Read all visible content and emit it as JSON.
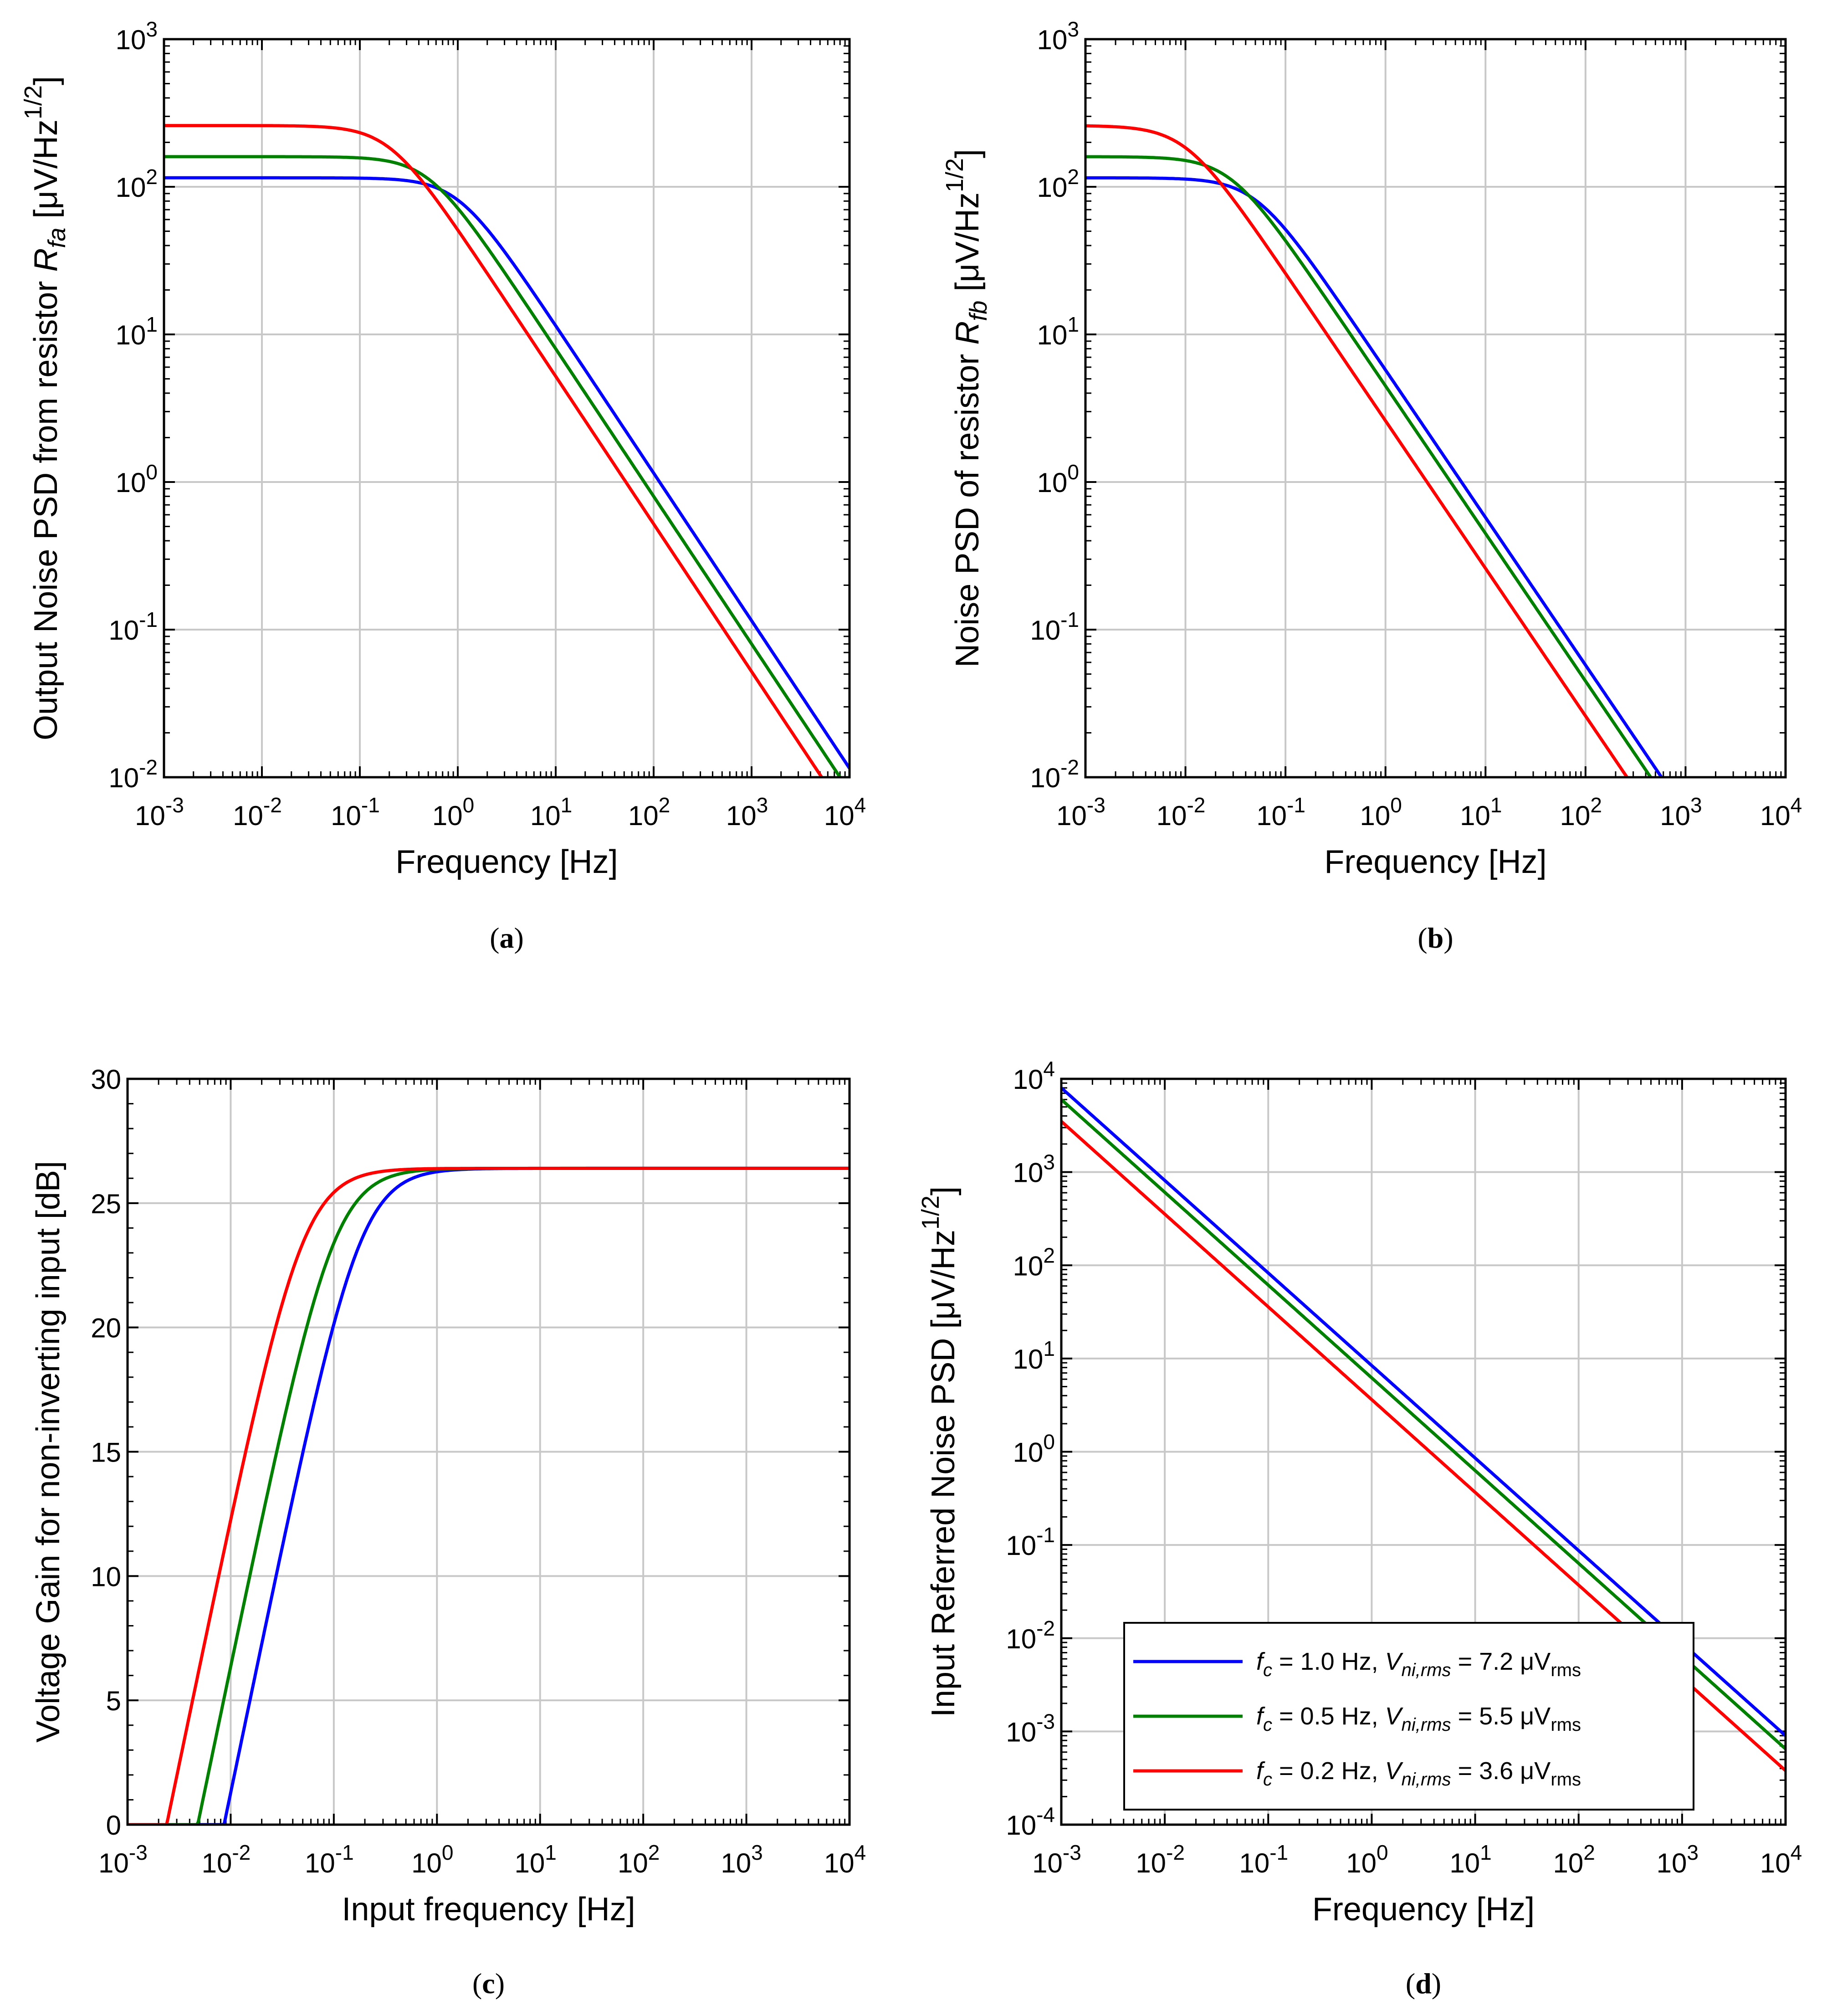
{
  "colors": {
    "blue": "#0000ff",
    "green": "#008000",
    "red": "#ff0000"
  },
  "chart_data": [
    {
      "id": "a",
      "type": "line",
      "panel_label": "a",
      "xscale": "log",
      "yscale": "log",
      "xlim": [
        0.001,
        10000
      ],
      "ylim": [
        0.01,
        1000
      ],
      "xlabel": "Frequency [Hz]",
      "ylabel": {
        "main": "Output Noise PSD from resistor ",
        "sym": "R",
        "sub": "fa",
        "unit": " [μV/Hz",
        "sup": "1/2",
        "close": "]"
      },
      "x_ticks": [
        [
          "10",
          "-3"
        ],
        [
          "10",
          "-2"
        ],
        [
          "10",
          "-1"
        ],
        [
          "10",
          "0"
        ],
        [
          "10",
          "1"
        ],
        [
          "10",
          "2"
        ],
        [
          "10",
          "3"
        ],
        [
          "10",
          "4"
        ]
      ],
      "y_ticks": [
        [
          "10",
          "-2"
        ],
        [
          "10",
          "-1"
        ],
        [
          "10",
          "0"
        ],
        [
          "10",
          "1"
        ],
        [
          "10",
          "2"
        ],
        [
          "10",
          "3"
        ]
      ],
      "grid": true,
      "series": [
        {
          "name": "fc = 1.0 Hz",
          "color": "blue",
          "plateau": 115,
          "corner_hz": 1.0,
          "order": 1
        },
        {
          "name": "fc = 0.5 Hz",
          "color": "green",
          "plateau": 160,
          "corner_hz": 0.5,
          "order": 1
        },
        {
          "name": "fc = 0.2 Hz",
          "color": "red",
          "plateau": 260,
          "corner_hz": 0.2,
          "order": 1
        }
      ]
    },
    {
      "id": "b",
      "type": "line",
      "panel_label": "b",
      "xscale": "log",
      "yscale": "log",
      "xlim": [
        0.001,
        10000
      ],
      "ylim": [
        0.01,
        1000
      ],
      "xlabel": "Frequency [Hz]",
      "ylabel": {
        "main": "Noise PSD of resistor ",
        "sym": "R",
        "sub": "fb",
        "unit": " [μV/Hz",
        "sup": "1/2",
        "close": "]"
      },
      "x_ticks": [
        [
          "10",
          "-3"
        ],
        [
          "10",
          "-2"
        ],
        [
          "10",
          "-1"
        ],
        [
          "10",
          "0"
        ],
        [
          "10",
          "1"
        ],
        [
          "10",
          "2"
        ],
        [
          "10",
          "3"
        ],
        [
          "10",
          "4"
        ]
      ],
      "y_ticks": [
        [
          "10",
          "-2"
        ],
        [
          "10",
          "-1"
        ],
        [
          "10",
          "0"
        ],
        [
          "10",
          "1"
        ],
        [
          "10",
          "2"
        ],
        [
          "10",
          "3"
        ]
      ],
      "grid": true,
      "series": [
        {
          "name": "fc = 1.0 Hz",
          "color": "blue",
          "plateau": 115,
          "corner_hz": 0.05,
          "order": 1
        },
        {
          "name": "fc = 0.5 Hz",
          "color": "green",
          "plateau": 160,
          "corner_hz": 0.028,
          "order": 1
        },
        {
          "name": "fc = 0.2 Hz",
          "color": "red",
          "plateau": 260,
          "corner_hz": 0.01,
          "order": 1
        }
      ]
    },
    {
      "id": "c",
      "type": "line",
      "panel_label": "c",
      "xscale": "log",
      "yscale": "linear",
      "xlim": [
        0.001,
        10000
      ],
      "ylim": [
        0,
        30
      ],
      "xlabel": "Input frequency [Hz]",
      "ylabel": {
        "main": "Voltage Gain for non-inverting input [dB]"
      },
      "x_ticks": [
        [
          "10",
          "-3"
        ],
        [
          "10",
          "-2"
        ],
        [
          "10",
          "-1"
        ],
        [
          "10",
          "0"
        ],
        [
          "10",
          "1"
        ],
        [
          "10",
          "2"
        ],
        [
          "10",
          "3"
        ],
        [
          "10",
          "4"
        ]
      ],
      "y_ticks": [
        [
          "0",
          ""
        ],
        [
          "5",
          ""
        ],
        [
          "10",
          ""
        ],
        [
          "15",
          ""
        ],
        [
          "20",
          ""
        ],
        [
          "25",
          ""
        ],
        [
          "30",
          ""
        ]
      ],
      "y_tick_values": [
        0,
        5,
        10,
        15,
        20,
        25,
        30
      ],
      "grid": true,
      "max_gain_db": 26.4,
      "series": [
        {
          "name": "fc = 1.0 Hz",
          "color": "blue",
          "corner_hz": 0.18
        },
        {
          "name": "fc = 0.5 Hz",
          "color": "green",
          "corner_hz": 0.1
        },
        {
          "name": "fc = 0.2 Hz",
          "color": "red",
          "corner_hz": 0.05
        }
      ]
    },
    {
      "id": "d",
      "type": "line",
      "panel_label": "d",
      "xscale": "log",
      "yscale": "log",
      "xlim": [
        0.001,
        10000
      ],
      "ylim": [
        0.0001,
        10000
      ],
      "xlabel": "Frequency [Hz]",
      "ylabel": {
        "main": "Input Referred Noise PSD [μV/Hz",
        "sup": "1/2",
        "close": "]"
      },
      "x_ticks": [
        [
          "10",
          "-3"
        ],
        [
          "10",
          "-2"
        ],
        [
          "10",
          "-1"
        ],
        [
          "10",
          "0"
        ],
        [
          "10",
          "1"
        ],
        [
          "10",
          "2"
        ],
        [
          "10",
          "3"
        ],
        [
          "10",
          "4"
        ]
      ],
      "y_ticks": [
        [
          "10",
          "-4"
        ],
        [
          "10",
          "-3"
        ],
        [
          "10",
          "-2"
        ],
        [
          "10",
          "-1"
        ],
        [
          "10",
          "0"
        ],
        [
          "10",
          "1"
        ],
        [
          "10",
          "2"
        ],
        [
          "10",
          "3"
        ],
        [
          "10",
          "4"
        ]
      ],
      "grid": true,
      "series": [
        {
          "name": "fc = 1.0 Hz",
          "color": "blue",
          "value_at_1e-3": 8000,
          "value_at_1e4": 0.0009
        },
        {
          "name": "fc = 0.5 Hz",
          "color": "green",
          "value_at_1e-3": 6000,
          "value_at_1e4": 0.00065
        },
        {
          "name": "fc = 0.2 Hz",
          "color": "red",
          "value_at_1e-3": 3500,
          "value_at_1e4": 0.00038
        }
      ],
      "legend": {
        "position": "bottom-left",
        "entries": [
          {
            "color": "blue",
            "fc_sym": "f",
            "fc_sub": "c",
            "fc_text": " = 1.0 Hz, ",
            "v_sym": "V",
            "v_sub": "ni,rms",
            "v_text": " = 7.2 μV",
            "v_unit_sub": "rms"
          },
          {
            "color": "green",
            "fc_sym": "f",
            "fc_sub": "c",
            "fc_text": " = 0.5 Hz, ",
            "v_sym": "V",
            "v_sub": "ni,rms",
            "v_text": " = 5.5 μV",
            "v_unit_sub": "rms"
          },
          {
            "color": "red",
            "fc_sym": "f",
            "fc_sub": "c",
            "fc_text": " = 0.2 Hz, ",
            "v_sym": "V",
            "v_sub": "ni,rms",
            "v_text": " = 3.6 μV",
            "v_unit_sub": "rms"
          }
        ]
      }
    }
  ]
}
